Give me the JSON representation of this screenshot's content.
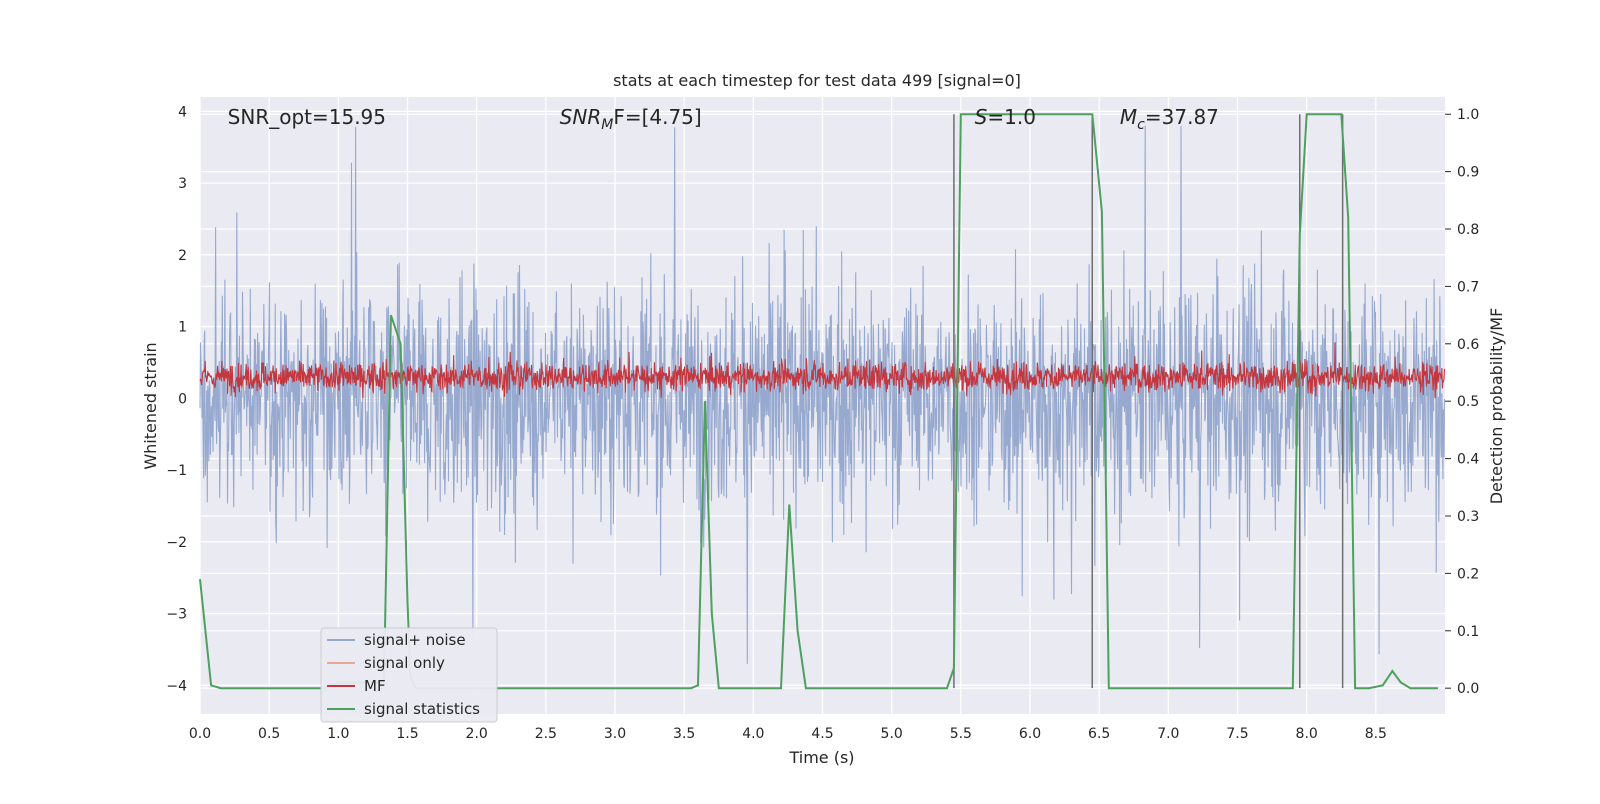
{
  "chart_data": {
    "type": "line",
    "title": "stats at each timestep for test data 499 [signal=0]",
    "xlabel": "Time (s)",
    "ylabel": "Whitened strain",
    "ylabel_right": "Detection probability/MF",
    "xlim": [
      0.0,
      9.0
    ],
    "ylim": [
      -4.4,
      4.2
    ],
    "ylim_right": [
      -0.045,
      1.03
    ],
    "grid": true,
    "x_ticks": [
      0.0,
      0.5,
      1.0,
      1.5,
      2.0,
      2.5,
      3.0,
      3.5,
      4.0,
      4.5,
      5.0,
      5.5,
      6.0,
      6.5,
      7.0,
      7.5,
      8.0,
      8.5
    ],
    "x_tick_labels": [
      "0.0",
      "0.5",
      "1.0",
      "1.5",
      "2.0",
      "2.5",
      "3.0",
      "3.5",
      "4.0",
      "4.5",
      "5.0",
      "5.5",
      "6.0",
      "6.5",
      "7.0",
      "7.5",
      "8.0",
      "8.5"
    ],
    "y_ticks": [
      4,
      3,
      2,
      1,
      0,
      -1,
      -2,
      -3,
      -4
    ],
    "y_tick_labels": [
      "4",
      "3",
      "2",
      "1",
      "0",
      "−1",
      "−2",
      "−3",
      "−4"
    ],
    "y_ticks_right": [
      1.0,
      0.9,
      0.8,
      0.7,
      0.6,
      0.5,
      0.4,
      0.3,
      0.2,
      0.1,
      0.0
    ],
    "y_tick_labels_right": [
      "1.0",
      "0.9",
      "0.8",
      "0.7",
      "0.6",
      "0.5",
      "0.4",
      "0.3",
      "0.2",
      "0.1",
      "0.0"
    ],
    "annotations": [
      {
        "text": "SNR_opt=15.95",
        "x": 0.2
      },
      {
        "text": "SNRMF=[4.75]",
        "x": 2.6,
        "base": "SNR",
        "sub": "M",
        "tail": "F=[4.75]"
      },
      {
        "text": "S=1.0",
        "x": 5.6,
        "base": "S",
        "tail": "=1.0"
      },
      {
        "text": "Mc=37.87",
        "x": 6.65,
        "base": "M",
        "sub": "c",
        "tail": "=37.87"
      }
    ],
    "legend": {
      "placement": "lower-left",
      "entries": [
        {
          "label": "signal+ noise",
          "color": "#97a9cf"
        },
        {
          "label": "signal only",
          "color": "#eaa98e"
        },
        {
          "label": "MF",
          "color": "#c4373e"
        },
        {
          "label": "signal statistics",
          "color": "#4f9f5f"
        }
      ]
    },
    "series": [
      {
        "name": "signal+ noise",
        "axis": "left",
        "color": "#97a9cf",
        "style": "dense noise band",
        "approx_range": [
          -4.0,
          3.8
        ]
      },
      {
        "name": "signal only",
        "axis": "left",
        "color": "#eaa98e",
        "values": []
      },
      {
        "name": "MF",
        "axis": "left",
        "color": "#c4373e",
        "style": "dense band",
        "approx_range": [
          0.0,
          1.0
        ]
      },
      {
        "name": "signal statistics",
        "axis": "right",
        "color": "#4f9f5f",
        "points": [
          [
            0.0,
            0.19
          ],
          [
            0.08,
            0.005
          ],
          [
            0.15,
            0.0
          ],
          [
            0.9,
            0.0
          ],
          [
            1.0,
            0.01
          ],
          [
            1.33,
            0.01
          ],
          [
            1.38,
            0.65
          ],
          [
            1.45,
            0.6
          ],
          [
            1.5,
            0.15
          ],
          [
            1.52,
            0.02
          ],
          [
            1.56,
            0.0
          ],
          [
            3.55,
            0.0
          ],
          [
            3.6,
            0.005
          ],
          [
            3.65,
            0.5
          ],
          [
            3.7,
            0.13
          ],
          [
            3.75,
            0.0
          ],
          [
            4.2,
            0.0
          ],
          [
            4.26,
            0.32
          ],
          [
            4.32,
            0.1
          ],
          [
            4.38,
            0.0
          ],
          [
            5.4,
            0.0
          ],
          [
            5.45,
            0.035
          ],
          [
            5.5,
            1.0
          ],
          [
            6.45,
            1.0
          ],
          [
            6.52,
            0.83
          ],
          [
            6.57,
            0.0
          ],
          [
            7.9,
            0.0
          ],
          [
            7.95,
            0.79
          ],
          [
            8.0,
            1.0
          ],
          [
            8.25,
            1.0
          ],
          [
            8.3,
            0.82
          ],
          [
            8.35,
            0.0
          ],
          [
            8.45,
            0.0
          ],
          [
            8.55,
            0.005
          ],
          [
            8.62,
            0.03
          ],
          [
            8.68,
            0.01
          ],
          [
            8.75,
            0.0
          ],
          [
            8.95,
            0.0
          ]
        ]
      }
    ],
    "vertical_markers": [
      {
        "x": 5.45,
        "color": "#6e6e6e"
      },
      {
        "x": 6.45,
        "color": "#6e6e6e"
      },
      {
        "x": 7.95,
        "color": "#6e6e6e"
      },
      {
        "x": 8.26,
        "color": "#6e6e6e"
      }
    ]
  }
}
